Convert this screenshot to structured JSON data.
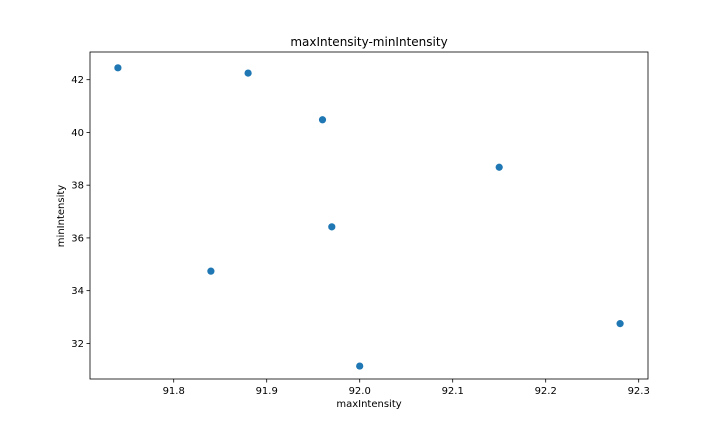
{
  "chart_data": {
    "type": "scatter",
    "title": "maxIntensity-minIntensity",
    "xlabel": "maxIntensity",
    "ylabel": "minIntensity",
    "xlim": [
      91.71,
      92.31
    ],
    "ylim": [
      30.65,
      43.05
    ],
    "xticks": [
      91.8,
      91.9,
      92.0,
      92.1,
      92.2,
      92.3
    ],
    "xtick_labels": [
      "91.8",
      "91.9",
      "92.0",
      "92.1",
      "92.2",
      "92.3"
    ],
    "yticks": [
      32,
      34,
      36,
      38,
      40,
      42
    ],
    "ytick_labels": [
      "32",
      "34",
      "36",
      "38",
      "40",
      "42"
    ],
    "grid": false,
    "marker_color": "#1f77b4",
    "points": [
      {
        "x": 91.74,
        "y": 42.45
      },
      {
        "x": 91.88,
        "y": 42.25
      },
      {
        "x": 91.96,
        "y": 40.48
      },
      {
        "x": 92.15,
        "y": 38.68
      },
      {
        "x": 91.97,
        "y": 36.42
      },
      {
        "x": 91.84,
        "y": 34.74
      },
      {
        "x": 92.28,
        "y": 32.75
      },
      {
        "x": 92.0,
        "y": 31.14
      }
    ]
  }
}
